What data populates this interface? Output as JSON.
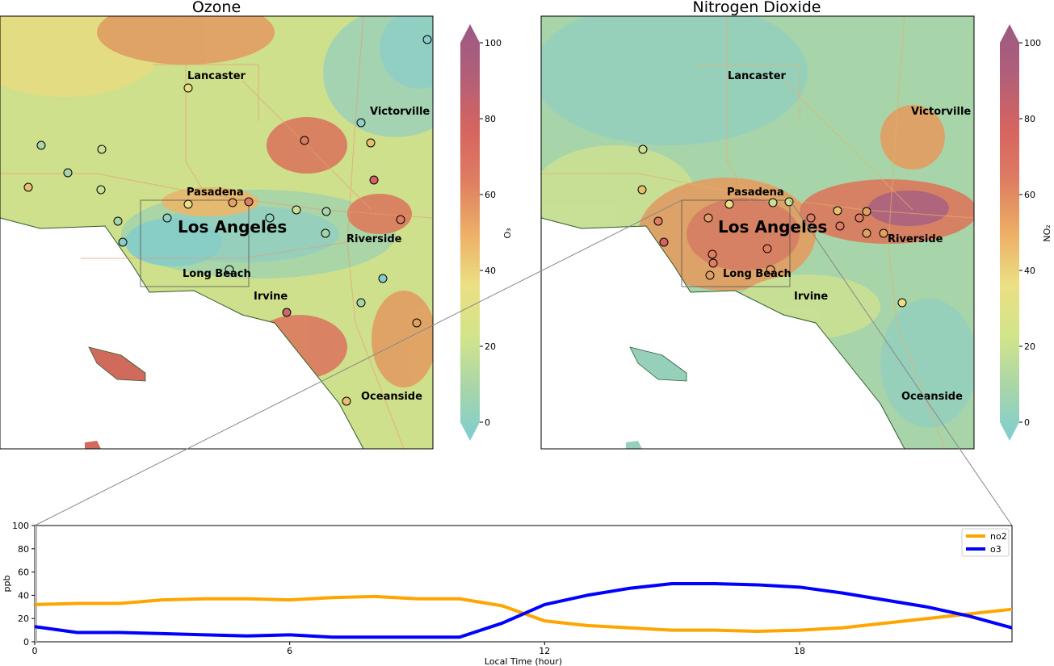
{
  "maps": [
    {
      "title": "Ozone",
      "colorbar_label": "O₃",
      "cities": [
        {
          "name": "Lancaster",
          "big": false
        },
        {
          "name": "Victorville",
          "big": false
        },
        {
          "name": "Pasadena",
          "big": false
        },
        {
          "name": "Los Angeles",
          "big": true
        },
        {
          "name": "Riverside",
          "big": false
        },
        {
          "name": "Long Beach",
          "big": false
        },
        {
          "name": "Irvine",
          "big": false
        },
        {
          "name": "Oceanside",
          "big": false
        }
      ]
    },
    {
      "title": "Nitrogen Dioxide",
      "colorbar_label": "NO₂",
      "cities": [
        {
          "name": "Lancaster",
          "big": false
        },
        {
          "name": "Victorville",
          "big": false
        },
        {
          "name": "Pasadena",
          "big": false
        },
        {
          "name": "Los Angeles",
          "big": true
        },
        {
          "name": "Riverside",
          "big": false
        },
        {
          "name": "Long Beach",
          "big": false
        },
        {
          "name": "Irvine",
          "big": false
        },
        {
          "name": "Oceanside",
          "big": false
        }
      ]
    }
  ],
  "colorbar": {
    "ticks": [
      "0",
      "20",
      "40",
      "60",
      "80",
      "100"
    ],
    "range": [
      0,
      100
    ],
    "colors": [
      "#7ecdd1",
      "#a7d5a9",
      "#d2e48a",
      "#ecdf83",
      "#edae66",
      "#de7d62",
      "#d56460",
      "#b25f78",
      "#9b5a84"
    ]
  },
  "chart_data": {
    "type": "line",
    "title": "",
    "xlabel": "Local Time (hour)",
    "ylabel": "ppb",
    "xlim": [
      0,
      23
    ],
    "ylim": [
      0,
      100
    ],
    "xticks": [
      "0",
      "6",
      "12",
      "18"
    ],
    "yticks": [
      "0",
      "20",
      "40",
      "60",
      "80",
      "100"
    ],
    "legend_position": "top-right",
    "x": [
      0,
      1,
      2,
      3,
      4,
      5,
      6,
      7,
      8,
      9,
      10,
      11,
      12,
      13,
      14,
      15,
      16,
      17,
      18,
      19,
      20,
      21,
      22,
      23
    ],
    "series": [
      {
        "name": "no2",
        "color": "#ffa500",
        "values": [
          32,
          33,
          33,
          36,
          37,
          37,
          36,
          38,
          39,
          37,
          37,
          31,
          18,
          14,
          12,
          10,
          10,
          9,
          10,
          12,
          16,
          20,
          24,
          28
        ]
      },
      {
        "name": "o3",
        "color": "#0000ff",
        "values": [
          13,
          8,
          8,
          7,
          6,
          5,
          6,
          4,
          4,
          4,
          4,
          16,
          32,
          40,
          46,
          50,
          50,
          49,
          47,
          42,
          36,
          30,
          22,
          12
        ]
      }
    ]
  }
}
